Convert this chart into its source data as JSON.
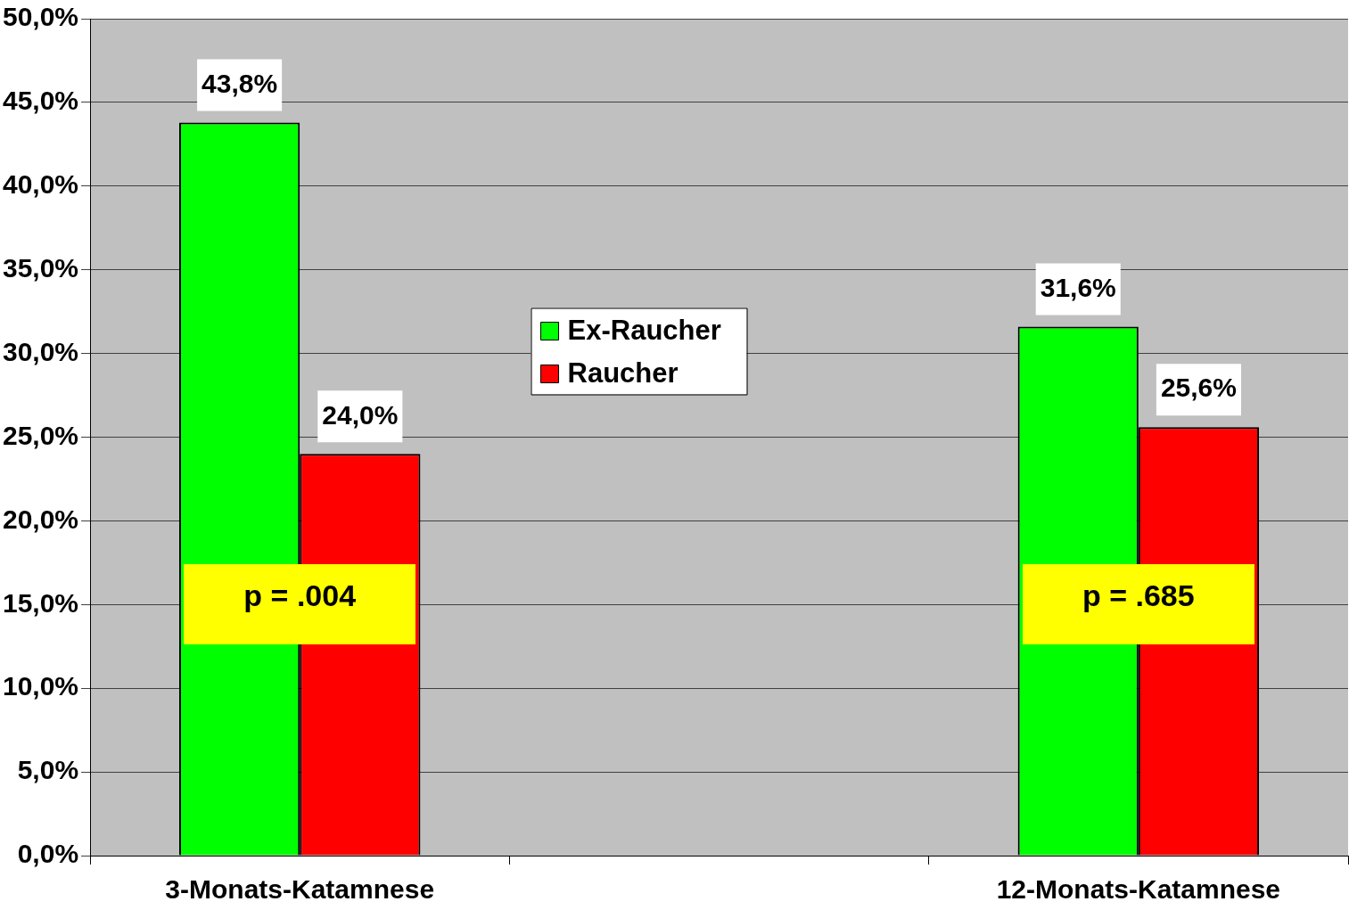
{
  "chart_data": {
    "type": "bar",
    "categories": [
      "3-Monats-Katamnese",
      null,
      "12-Monats-Katamnese"
    ],
    "series": [
      {
        "name": "Ex-Raucher",
        "color": "#00ff00",
        "values": [
          43.8,
          null,
          31.6
        ],
        "value_labels": [
          "43,8%",
          null,
          "31,6%"
        ]
      },
      {
        "name": "Raucher",
        "color": "#ff0000",
        "values": [
          24.0,
          null,
          25.6
        ],
        "value_labels": [
          "24,0%",
          null,
          "25,6%"
        ]
      }
    ],
    "ylim": [
      0,
      50
    ],
    "yticks": [
      {
        "value": 0,
        "label": "0,0%"
      },
      {
        "value": 5,
        "label": "5,0%"
      },
      {
        "value": 10,
        "label": "10,0%"
      },
      {
        "value": 15,
        "label": "15,0%"
      },
      {
        "value": 20,
        "label": "20,0%"
      },
      {
        "value": 25,
        "label": "25,0%"
      },
      {
        "value": 30,
        "label": "30,0%"
      },
      {
        "value": 35,
        "label": "35,0%"
      },
      {
        "value": 40,
        "label": "40,0%"
      },
      {
        "value": 45,
        "label": "45,0%"
      },
      {
        "value": 50,
        "label": "50,0%"
      }
    ],
    "grid": "y",
    "legend": "center",
    "annotations": [
      {
        "text": "p = .004",
        "x": "3-Monats-Katamnese",
        "y": 15
      },
      {
        "text": "p = .685",
        "x": "12-Monats-Katamnese",
        "y": 15
      }
    ]
  }
}
